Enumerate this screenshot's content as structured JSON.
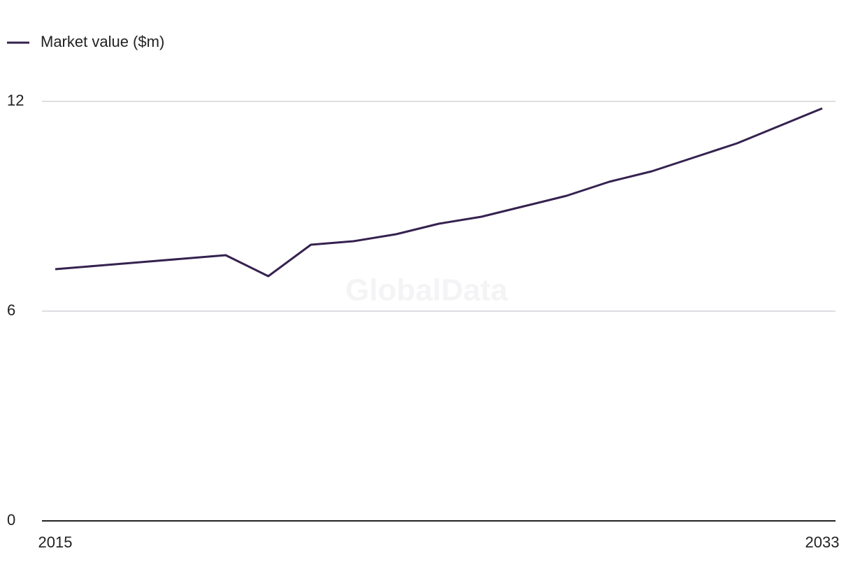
{
  "chart_data": {
    "type": "line",
    "watermark": "GlobalData",
    "x": [
      2015,
      2016,
      2017,
      2018,
      2019,
      2020,
      2021,
      2022,
      2023,
      2024,
      2025,
      2026,
      2027,
      2028,
      2029,
      2030,
      2031,
      2032,
      2033
    ],
    "series": [
      {
        "name": "Market value ($m)",
        "color": "#35224f",
        "values": [
          7.2,
          7.3,
          7.4,
          7.5,
          7.6,
          7.0,
          7.9,
          8.0,
          8.2,
          8.5,
          8.7,
          9.0,
          9.3,
          9.7,
          10.0,
          10.4,
          10.8,
          11.3,
          11.8
        ]
      }
    ],
    "xlim": [
      2015,
      2033
    ],
    "xticks": [
      2015,
      2033
    ],
    "ylim": [
      0,
      12
    ],
    "yticks": [
      0,
      6,
      12
    ],
    "grid": true,
    "legend": "top-left"
  }
}
